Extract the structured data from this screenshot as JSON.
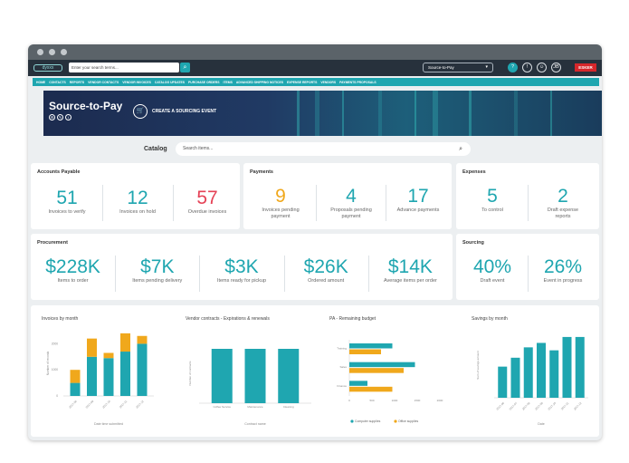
{
  "topbar": {
    "logo_text": "dyxxx",
    "search_placeholder": "Enter your search terms...",
    "search_icon": "search-icon",
    "context_select": "Source-to-Pay",
    "help": "?",
    "icons": [
      "help-icon",
      "notification-icon",
      "user-icon",
      "avatar-icon"
    ],
    "avatar_initials": "JB",
    "brand": "ESKER"
  },
  "nav": [
    "HOME",
    "CONTACTS",
    "REPORTS",
    "VENDOR CONTACTS",
    "VENDOR INVOICES",
    "CATALOG UPDATES",
    "PURCHASE ORDERS",
    "ITEMS",
    "ADVANCED SHIPPING NOTICES",
    "EXPENSE REPORTS",
    "VENDORS",
    "PAYMENTS PROPOSALS"
  ],
  "banner": {
    "title": "Source-to-Pay",
    "cta": "CREATE A SOURCING EVENT"
  },
  "catalog": {
    "label": "Catalog",
    "placeholder": "Search items..."
  },
  "cards": {
    "ap": {
      "title": "Accounts Payable",
      "kpis": [
        {
          "value": "51",
          "label": "Invoices to verify",
          "color": "#1fa6b0"
        },
        {
          "value": "12",
          "label": "Invoices on hold",
          "color": "#1fa6b0"
        },
        {
          "value": "57",
          "label": "Overdue invoices",
          "color": "#e54256"
        }
      ]
    },
    "payments": {
      "title": "Payments",
      "kpis": [
        {
          "value": "9",
          "label1": "Invoices pending",
          "label2": "payment",
          "color": "#f0a81c"
        },
        {
          "value": "4",
          "label1": "Proposals pending",
          "label2": "payment",
          "color": "#1fa6b0"
        },
        {
          "value": "17",
          "label1": "Advance payments",
          "label2": "",
          "color": "#1fa6b0"
        }
      ]
    },
    "expenses": {
      "title": "Expenses",
      "kpis": [
        {
          "value": "5",
          "label1": "To control",
          "label2": ""
        },
        {
          "value": "2",
          "label1": "Draft expense",
          "label2": "reports"
        }
      ]
    },
    "procurement": {
      "title": "Procurement",
      "kpis": [
        {
          "value": "$228K",
          "label": "Items to order"
        },
        {
          "value": "$7K",
          "label": "Items pending delivery"
        },
        {
          "value": "$3K",
          "label": "Items ready for pickup"
        },
        {
          "value": "$26K",
          "label": "Ordered amount"
        },
        {
          "value": "$14K",
          "label": "Average items per order"
        }
      ]
    },
    "sourcing": {
      "title": "Sourcing",
      "kpis": [
        {
          "value": "40%",
          "label": "Draft event"
        },
        {
          "value": "26%",
          "label": "Event in progress"
        }
      ]
    }
  },
  "chart_data": [
    {
      "type": "bar",
      "title": "Invoices by month",
      "xlabel": "Date time submitted",
      "ylabel": "Number of records",
      "categories": [
        "2017-08",
        "2017-09",
        "2017-10",
        "2017-11",
        "2017-12"
      ],
      "ylim": [
        0,
        2500
      ],
      "yticks": [
        "0",
        "500",
        "1000",
        "1500",
        "2000"
      ],
      "stacked": true,
      "series": [
        {
          "color": "#1fa6b0",
          "values": [
            500,
            1500,
            1450,
            1700,
            2000
          ]
        },
        {
          "color": "#f0a81c",
          "values": [
            500,
            700,
            200,
            700,
            300
          ]
        }
      ]
    },
    {
      "type": "bar",
      "title": "Vendor contracts - Expirations & renewals",
      "xlabel": "Contract name",
      "ylabel": "Number of contracts",
      "categories": [
        "Coffee Service",
        "Maintenance",
        "Cleaning"
      ],
      "ylim": [
        0,
        1.1
      ],
      "series": [
        {
          "color": "#1fa6b0",
          "values": [
            1,
            1,
            1
          ]
        }
      ]
    },
    {
      "type": "bar",
      "orientation": "horizontal",
      "title": "PA - Remaining budget",
      "categories": [
        "Training",
        "Sales",
        "Finance"
      ],
      "xticks": [
        "0",
        "500",
        "1000",
        "1500",
        "2000"
      ],
      "xlim": [
        0,
        2000
      ],
      "series": [
        {
          "name": "Computer supplies",
          "color": "#1fa6b0",
          "values": [
            950,
            1450,
            400
          ]
        },
        {
          "name": "Office supplies",
          "color": "#f0a81c",
          "values": [
            700,
            1200,
            950
          ]
        }
      ],
      "legend": "bottom"
    },
    {
      "type": "bar",
      "title": "Savings by month",
      "xlabel": "Date",
      "ylabel": "Sum of savings amount",
      "categories": [
        "2017-06",
        "2017-07",
        "2017-08",
        "2017-09",
        "2017-10",
        "2017-11",
        "2017-12"
      ],
      "ylim": [
        0,
        2200
      ],
      "series": [
        {
          "color": "#1fa6b0",
          "values": [
            1050,
            1350,
            1700,
            1850,
            1600,
            2050,
            2050
          ]
        }
      ]
    }
  ]
}
